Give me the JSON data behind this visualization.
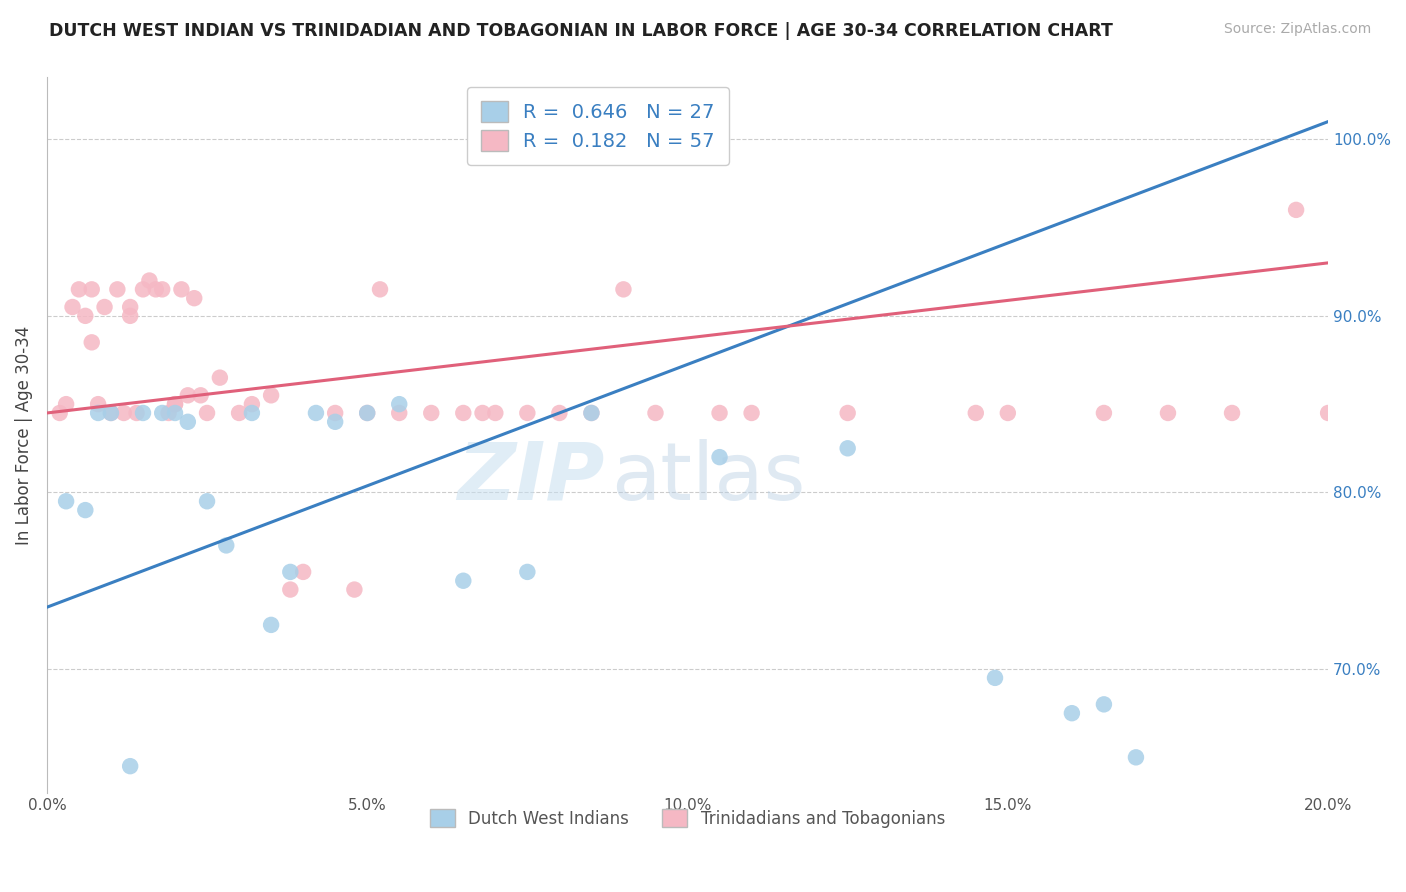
{
  "title": "DUTCH WEST INDIAN VS TRINIDADIAN AND TOBAGONIAN IN LABOR FORCE | AGE 30-34 CORRELATION CHART",
  "source": "Source: ZipAtlas.com",
  "ylabel": "In Labor Force | Age 30-34",
  "xlim": [
    0.0,
    20.0
  ],
  "ylim": [
    63.0,
    103.5
  ],
  "yticks": [
    70.0,
    80.0,
    90.0,
    100.0
  ],
  "xticks": [
    0.0,
    5.0,
    10.0,
    15.0,
    20.0
  ],
  "xtick_labels": [
    "0.0%",
    "5.0%",
    "10.0%",
    "15.0%",
    "20.0%"
  ],
  "ytick_labels": [
    "70.0%",
    "80.0%",
    "90.0%",
    "100.0%"
  ],
  "blue_R": "0.646",
  "blue_N": "27",
  "pink_R": "0.182",
  "pink_N": "57",
  "blue_color": "#a8cfe8",
  "pink_color": "#f5b8c4",
  "blue_line_color": "#3a7fc1",
  "pink_line_color": "#e0607a",
  "stat_text_color": "#3a7fc1",
  "legend_label_blue": "Dutch West Indians",
  "legend_label_pink": "Trinidadians and Tobagonians",
  "watermark_zip": "ZIP",
  "watermark_atlas": "atlas",
  "blue_scatter_x": [
    0.3,
    0.6,
    0.8,
    1.0,
    1.3,
    1.5,
    1.8,
    2.0,
    2.2,
    2.5,
    2.8,
    3.2,
    3.5,
    3.8,
    4.2,
    4.5,
    5.0,
    5.5,
    6.5,
    7.5,
    8.5,
    10.5,
    12.5,
    14.8,
    16.0,
    16.5,
    17.0
  ],
  "blue_scatter_y": [
    79.5,
    79.0,
    84.5,
    84.5,
    64.5,
    84.5,
    84.5,
    84.5,
    84.0,
    79.5,
    77.0,
    84.5,
    72.5,
    75.5,
    84.5,
    84.0,
    84.5,
    85.0,
    75.0,
    75.5,
    84.5,
    82.0,
    82.5,
    69.5,
    67.5,
    68.0,
    65.0
  ],
  "pink_scatter_x": [
    0.2,
    0.3,
    0.4,
    0.5,
    0.6,
    0.7,
    0.7,
    0.8,
    0.9,
    1.0,
    1.1,
    1.2,
    1.3,
    1.3,
    1.4,
    1.5,
    1.6,
    1.7,
    1.8,
    1.9,
    2.0,
    2.0,
    2.1,
    2.2,
    2.3,
    2.4,
    2.5,
    2.7,
    3.0,
    3.2,
    3.5,
    3.8,
    4.0,
    4.5,
    5.0,
    5.5,
    6.0,
    6.5,
    7.0,
    8.0,
    9.5,
    10.5,
    11.0,
    12.5,
    14.5,
    15.0,
    16.5,
    17.5,
    18.5,
    19.5,
    20.0,
    4.8,
    5.2,
    6.8,
    7.5,
    8.5,
    9.0
  ],
  "pink_scatter_y": [
    84.5,
    85.0,
    90.5,
    91.5,
    90.0,
    91.5,
    88.5,
    85.0,
    90.5,
    84.5,
    91.5,
    84.5,
    90.5,
    90.0,
    84.5,
    91.5,
    92.0,
    91.5,
    91.5,
    84.5,
    85.0,
    85.0,
    91.5,
    85.5,
    91.0,
    85.5,
    84.5,
    86.5,
    84.5,
    85.0,
    85.5,
    74.5,
    75.5,
    84.5,
    84.5,
    84.5,
    84.5,
    84.5,
    84.5,
    84.5,
    84.5,
    84.5,
    84.5,
    84.5,
    84.5,
    84.5,
    84.5,
    84.5,
    84.5,
    96.0,
    84.5,
    74.5,
    91.5,
    84.5,
    84.5,
    84.5,
    91.5
  ],
  "blue_line_x0": 0.0,
  "blue_line_y0": 73.5,
  "blue_line_x1": 20.0,
  "blue_line_y1": 101.0,
  "pink_line_x0": 0.0,
  "pink_line_y0": 84.5,
  "pink_line_x1": 20.0,
  "pink_line_y1": 93.0
}
